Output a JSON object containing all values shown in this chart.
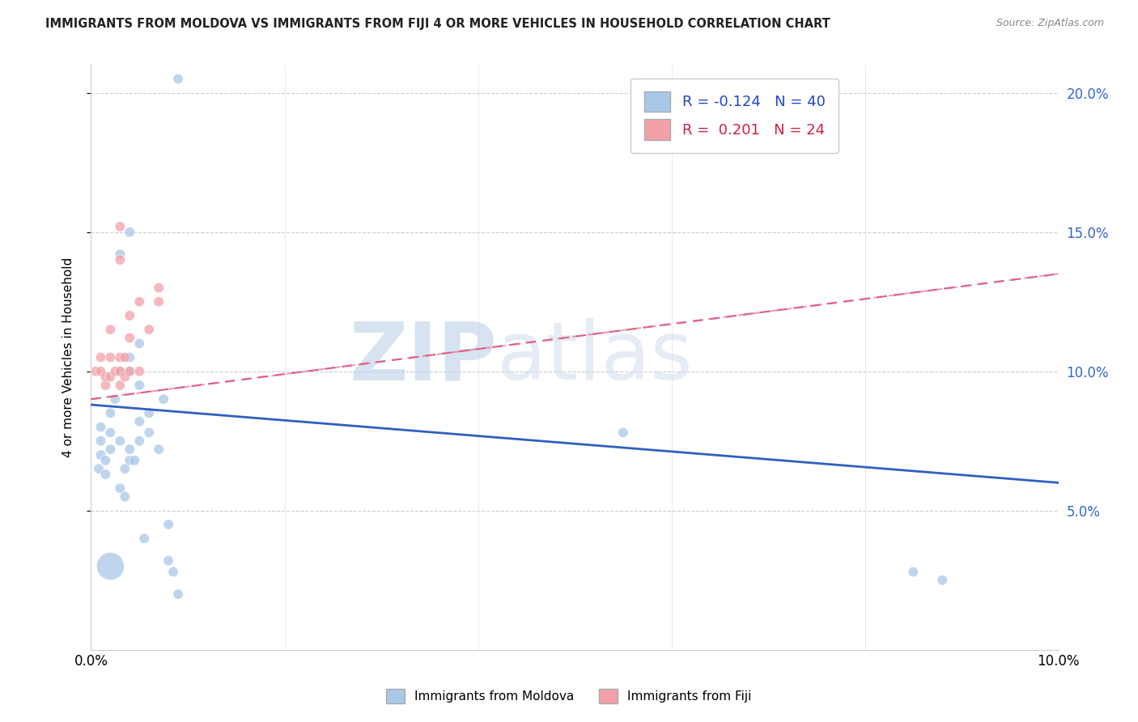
{
  "title": "IMMIGRANTS FROM MOLDOVA VS IMMIGRANTS FROM FIJI 4 OR MORE VEHICLES IN HOUSEHOLD CORRELATION CHART",
  "source": "Source: ZipAtlas.com",
  "ylabel": "4 or more Vehicles in Household",
  "watermark_zip": "ZIP",
  "watermark_atlas": "atlas",
  "moldova_color": "#a8c8e8",
  "fiji_color": "#f4a0a8",
  "moldova_line_color": "#3060c0",
  "fiji_line_color": "#e06080",
  "moldova_R": -0.124,
  "fiji_R": 0.201,
  "moldova_N": 40,
  "fiji_N": 24,
  "xlim": [
    0.0,
    0.1
  ],
  "ylim": [
    0.0,
    0.21
  ],
  "xlim_display": [
    0.0,
    0.1
  ],
  "yticks": [
    0.05,
    0.1,
    0.15,
    0.2
  ],
  "ytick_labels": [
    "5.0%",
    "10.0%",
    "15.0%",
    "20.0%"
  ],
  "moldova_points": [
    [
      0.0008,
      0.065
    ],
    [
      0.001,
      0.07
    ],
    [
      0.001,
      0.075
    ],
    [
      0.001,
      0.08
    ],
    [
      0.0015,
      0.063
    ],
    [
      0.0015,
      0.068
    ],
    [
      0.002,
      0.072
    ],
    [
      0.002,
      0.078
    ],
    [
      0.002,
      0.085
    ],
    [
      0.0025,
      0.09
    ],
    [
      0.003,
      0.058
    ],
    [
      0.003,
      0.075
    ],
    [
      0.003,
      0.1
    ],
    [
      0.003,
      0.142
    ],
    [
      0.0035,
      0.055
    ],
    [
      0.0035,
      0.065
    ],
    [
      0.004,
      0.068
    ],
    [
      0.004,
      0.072
    ],
    [
      0.004,
      0.1
    ],
    [
      0.004,
      0.105
    ],
    [
      0.004,
      0.15
    ],
    [
      0.0045,
      0.068
    ],
    [
      0.005,
      0.075
    ],
    [
      0.005,
      0.082
    ],
    [
      0.005,
      0.095
    ],
    [
      0.005,
      0.11
    ],
    [
      0.0055,
      0.04
    ],
    [
      0.006,
      0.078
    ],
    [
      0.006,
      0.085
    ],
    [
      0.007,
      0.072
    ],
    [
      0.0075,
      0.09
    ],
    [
      0.008,
      0.045
    ],
    [
      0.008,
      0.032
    ],
    [
      0.0085,
      0.028
    ],
    [
      0.009,
      0.02
    ],
    [
      0.009,
      0.205
    ],
    [
      0.055,
      0.078
    ],
    [
      0.085,
      0.028
    ],
    [
      0.088,
      0.025
    ],
    [
      0.002,
      0.03
    ]
  ],
  "moldova_sizes": [
    80,
    80,
    80,
    80,
    80,
    80,
    80,
    80,
    80,
    80,
    80,
    80,
    80,
    80,
    80,
    80,
    80,
    80,
    80,
    80,
    80,
    80,
    80,
    80,
    80,
    80,
    80,
    80,
    80,
    80,
    80,
    80,
    80,
    80,
    80,
    80,
    80,
    80,
    80,
    600
  ],
  "fiji_points": [
    [
      0.0005,
      0.1
    ],
    [
      0.001,
      0.1
    ],
    [
      0.001,
      0.105
    ],
    [
      0.0015,
      0.095
    ],
    [
      0.0015,
      0.098
    ],
    [
      0.002,
      0.098
    ],
    [
      0.002,
      0.105
    ],
    [
      0.002,
      0.115
    ],
    [
      0.0025,
      0.1
    ],
    [
      0.003,
      0.095
    ],
    [
      0.003,
      0.1
    ],
    [
      0.003,
      0.105
    ],
    [
      0.003,
      0.14
    ],
    [
      0.003,
      0.152
    ],
    [
      0.0035,
      0.098
    ],
    [
      0.0035,
      0.105
    ],
    [
      0.004,
      0.1
    ],
    [
      0.004,
      0.112
    ],
    [
      0.004,
      0.12
    ],
    [
      0.005,
      0.1
    ],
    [
      0.005,
      0.125
    ],
    [
      0.006,
      0.115
    ],
    [
      0.007,
      0.125
    ],
    [
      0.007,
      0.13
    ]
  ],
  "fiji_sizes": [
    80,
    80,
    80,
    80,
    80,
    80,
    80,
    80,
    80,
    80,
    80,
    80,
    80,
    80,
    80,
    80,
    80,
    80,
    80,
    80,
    80,
    80,
    80,
    80
  ],
  "mol_line_x": [
    0.0,
    0.1
  ],
  "mol_line_y": [
    0.088,
    0.06
  ],
  "fiji_line_x": [
    0.0,
    0.1
  ],
  "fiji_line_y": [
    0.09,
    0.135
  ]
}
